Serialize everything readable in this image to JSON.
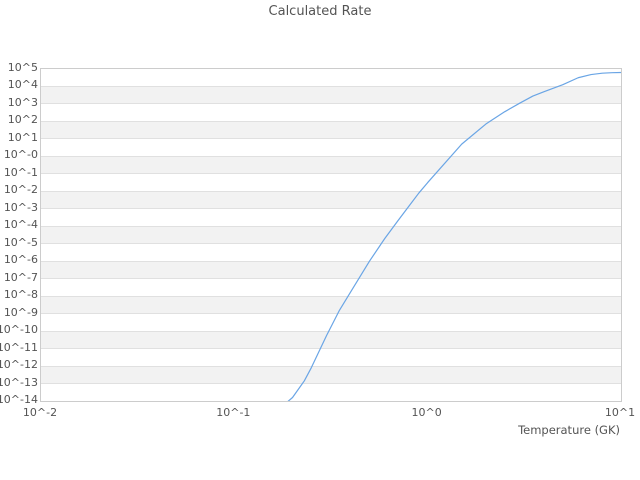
{
  "chart_data": {
    "type": "line",
    "title": "Calculated Rate",
    "xlabel": "Temperature (GK)",
    "ylabel": "",
    "x_scale": "log10",
    "y_scale": "log10",
    "xlim_log10": [
      -2,
      1
    ],
    "ylim_log10": [
      -14,
      5
    ],
    "x_tick_labels": [
      "10^-2",
      "10^-1",
      "10^0",
      "10^1"
    ],
    "y_tick_labels": [
      "10^5",
      "10^4",
      "10^3",
      "10^2",
      "10^1",
      "10^-0",
      "10^-1",
      "10^-2",
      "10^-3",
      "10^-4",
      "10^-5",
      "10^-6",
      "10^-7",
      "10^-8",
      "10^-9",
      "10^-10",
      "10^-11",
      "10^-12",
      "10^-13",
      "10^-14"
    ],
    "grid": "horizontal decade gridlines with alternating stripe bands",
    "legend": "none",
    "series": [
      {
        "name": "calculated-rate",
        "color": "#6aa5e5",
        "temperature_gk": [
          0.175,
          0.2,
          0.23,
          0.25,
          0.3,
          0.35,
          0.4,
          0.5,
          0.6,
          0.7,
          0.8,
          0.9,
          1.0,
          1.5,
          2.0,
          2.5,
          3.0,
          3.5,
          4.0,
          5.0,
          6.0,
          7.0,
          8.0,
          9.0,
          10.0
        ],
        "log10_rate": [
          -14.35,
          -13.8,
          -12.85,
          -12.1,
          -10.25,
          -8.8,
          -7.75,
          -6.0,
          -4.7,
          -3.7,
          -2.85,
          -2.1,
          -1.5,
          0.7,
          1.85,
          2.55,
          3.05,
          3.45,
          3.7,
          4.1,
          4.5,
          4.68,
          4.76,
          4.79,
          4.8
        ]
      }
    ],
    "colors": {
      "background": "#ffffff",
      "stripe_band": "#f2f2f2",
      "grid_line": "#e0e0e0",
      "plot_border": "#cccccc",
      "text": "#545454",
      "line": "#6aa5e5"
    }
  }
}
